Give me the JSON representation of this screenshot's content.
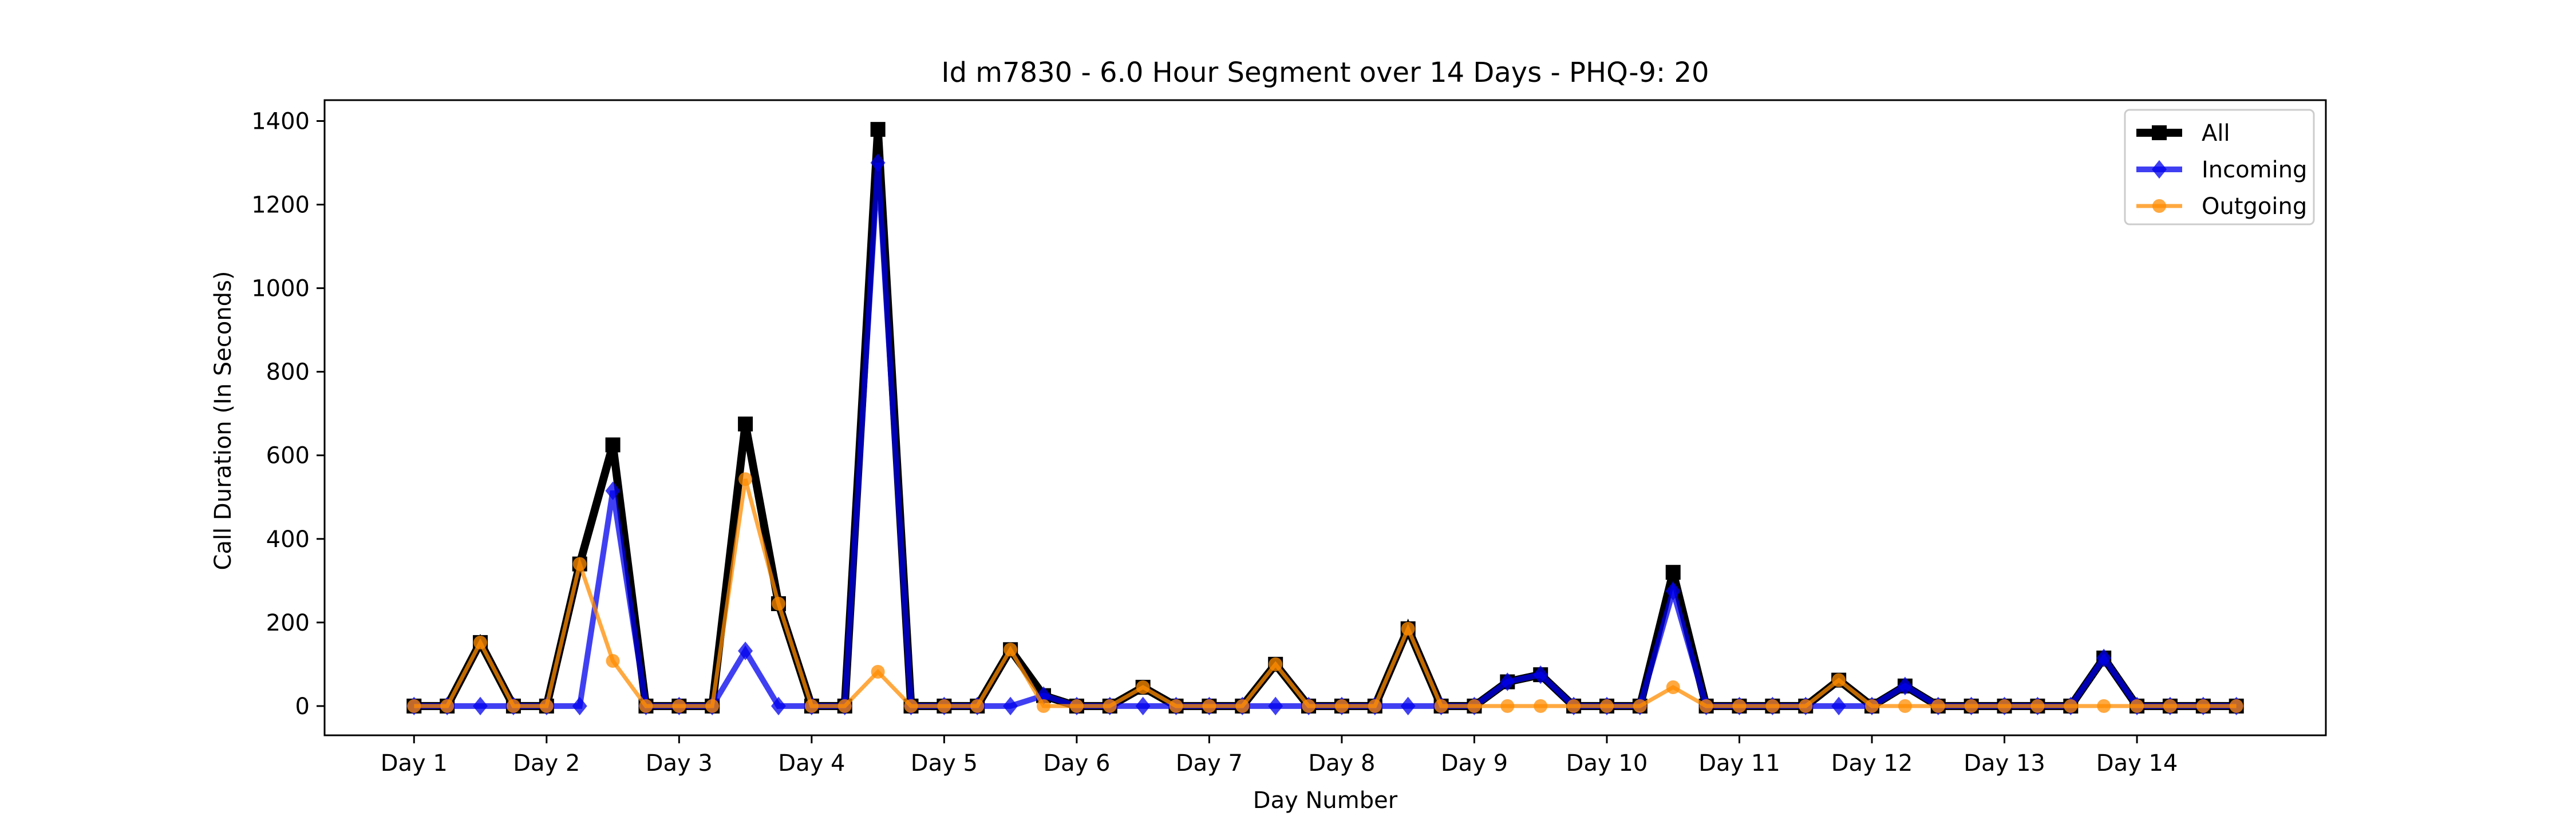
{
  "chart_data": {
    "type": "line",
    "title": "Id m7830 - 6.0 Hour Segment over 14 Days - PHQ-9: 20",
    "xlabel": "Day Number",
    "ylabel": "Call Duration (In Seconds)",
    "x_tick_labels": [
      "Day 1",
      "Day 2",
      "Day 3",
      "Day 4",
      "Day 5",
      "Day 6",
      "Day 7",
      "Day 8",
      "Day 9",
      "Day 10",
      "Day 11",
      "Day 12",
      "Day 13",
      "Day 14"
    ],
    "x_tick_positions": [
      0,
      4,
      8,
      12,
      16,
      20,
      24,
      28,
      32,
      36,
      40,
      44,
      48,
      52
    ],
    "xlim": [
      -2.7,
      57.7
    ],
    "y_ticks": [
      0,
      200,
      400,
      600,
      800,
      1000,
      1200,
      1400
    ],
    "ylim": [
      -70,
      1450
    ],
    "grid": false,
    "legend_position": "top-right",
    "x": [
      0,
      1,
      2,
      3,
      4,
      5,
      6,
      7,
      8,
      9,
      10,
      11,
      12,
      13,
      14,
      15,
      16,
      17,
      18,
      19,
      20,
      21,
      22,
      23,
      24,
      25,
      26,
      27,
      28,
      29,
      30,
      31,
      32,
      33,
      34,
      35,
      36,
      37,
      38,
      39,
      40,
      41,
      42,
      43,
      44,
      45,
      46,
      47,
      48,
      49,
      50,
      51,
      52,
      53,
      54,
      55
    ],
    "series": [
      {
        "name": "All",
        "color": "#000000",
        "marker": "square",
        "values": [
          0,
          0,
          152,
          0,
          0,
          340,
          625,
          0,
          0,
          0,
          675,
          245,
          0,
          0,
          1380,
          0,
          0,
          0,
          135,
          25,
          0,
          0,
          45,
          0,
          0,
          0,
          100,
          0,
          0,
          0,
          185,
          0,
          0,
          58,
          75,
          0,
          0,
          0,
          320,
          0,
          0,
          0,
          0,
          62,
          0,
          48,
          0,
          0,
          0,
          0,
          0,
          115,
          0,
          0,
          0,
          0
        ]
      },
      {
        "name": "Incoming",
        "color": "#0000ee",
        "marker": "diamond",
        "values": [
          0,
          0,
          0,
          0,
          0,
          0,
          515,
          0,
          0,
          0,
          132,
          0,
          0,
          0,
          1300,
          0,
          0,
          0,
          0,
          25,
          0,
          0,
          0,
          0,
          0,
          0,
          0,
          0,
          0,
          0,
          0,
          0,
          0,
          58,
          75,
          0,
          0,
          0,
          275,
          0,
          0,
          0,
          0,
          0,
          0,
          48,
          0,
          0,
          0,
          0,
          0,
          115,
          0,
          0,
          0,
          0
        ]
      },
      {
        "name": "Outgoing",
        "color": "#ff8c00",
        "marker": "circle",
        "values": [
          0,
          0,
          152,
          0,
          0,
          340,
          108,
          0,
          0,
          0,
          543,
          245,
          0,
          0,
          82,
          0,
          0,
          0,
          135,
          0,
          0,
          0,
          45,
          0,
          0,
          0,
          100,
          0,
          0,
          0,
          185,
          0,
          0,
          0,
          0,
          0,
          0,
          0,
          45,
          0,
          0,
          0,
          0,
          62,
          0,
          0,
          0,
          0,
          0,
          0,
          0,
          0,
          0,
          0,
          0,
          0
        ]
      }
    ]
  }
}
